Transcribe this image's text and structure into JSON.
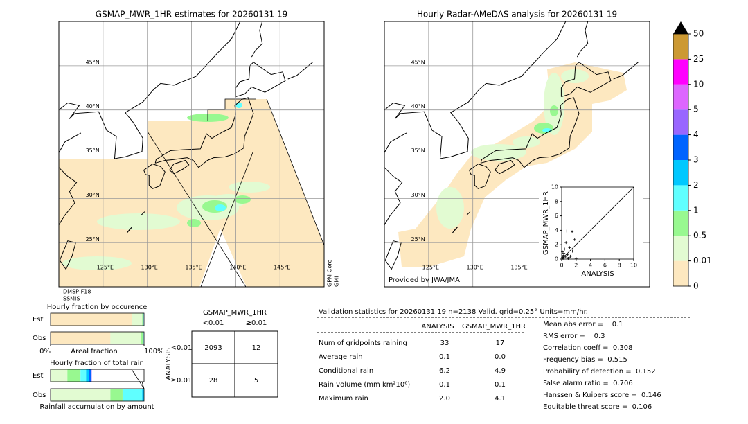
{
  "maps": [
    {
      "title": "GSMAP_MWR_1HR estimates for 20260131 19",
      "notes": [
        "DMSP-F18",
        "SSMIS"
      ],
      "side_notes": [
        "GPM-Core",
        "GMI"
      ],
      "lonticks": [
        {
          "value": 125,
          "label": "125°E"
        },
        {
          "value": 130,
          "label": "130°E"
        },
        {
          "value": 135,
          "label": "135°E"
        },
        {
          "value": 140,
          "label": "140°E"
        },
        {
          "value": 145,
          "label": "145°E"
        }
      ],
      "latticks": [
        {
          "value": 45,
          "label": "45°N"
        },
        {
          "value": 40,
          "label": "40°N"
        },
        {
          "value": 35,
          "label": "35°N"
        },
        {
          "value": 30,
          "label": "30°N"
        },
        {
          "value": 25,
          "label": "25°N"
        }
      ]
    },
    {
      "title": "Hourly Radar-AMeDAS analysis for 20260131 19",
      "credit": "Provided by JWA/JMA",
      "lonticks": [
        {
          "value": 125,
          "label": "125°E"
        },
        {
          "value": 130,
          "label": "130°E"
        },
        {
          "value": 135,
          "label": "135°E"
        }
      ],
      "latticks": [
        {
          "value": 45,
          "label": "45°N"
        },
        {
          "value": 40,
          "label": "40°N"
        },
        {
          "value": 35,
          "label": "35°N"
        },
        {
          "value": 30,
          "label": "30°N"
        },
        {
          "value": 25,
          "label": "25°N"
        }
      ]
    }
  ],
  "chart_data": [
    {
      "type": "colorbar",
      "ticks": [
        0,
        0.01,
        0.5,
        1,
        2,
        3,
        4,
        5,
        10,
        25,
        50
      ],
      "colors": [
        "#fde8c0",
        "#e2fbd2",
        "#98f890",
        "#60ffff",
        "#00c8ff",
        "#0064ff",
        "#9966ff",
        "#dd66ff",
        "#ff00ff",
        "#cc9933"
      ],
      "over_color": "#000000"
    },
    {
      "type": "scatter",
      "xlabel": "ANALYSIS",
      "ylabel": "GSMAP_MWR_1HR",
      "xlim": [
        0,
        10
      ],
      "ylim": [
        0,
        10
      ],
      "xticks": [
        0,
        2,
        4,
        6,
        8,
        10
      ],
      "yticks": [
        0,
        2,
        4,
        6,
        8,
        10
      ],
      "color": "#000000",
      "x": [
        0,
        0.1,
        0.2,
        0.3,
        0.5,
        0.1,
        0.4,
        0.8,
        1.0,
        1.2,
        0.6,
        1.1,
        1.5,
        1.45,
        0.7,
        1.8,
        0.3,
        0.9,
        0.2,
        2.0
      ],
      "values": [
        0,
        0.2,
        0.1,
        0.5,
        0.3,
        1.0,
        1.4,
        0.6,
        0.2,
        0.4,
        2.3,
        1.6,
        1.1,
        3.8,
        3.9,
        2.7,
        0.8,
        0.1,
        0.4,
        0.1
      ]
    },
    {
      "type": "stacked-bar",
      "title": "Hourly fraction by occurence",
      "xlabel": "Areal fraction",
      "categories": [
        "Est",
        "Obs"
      ],
      "xlim": [
        0,
        1
      ],
      "xticks": [
        {
          "value": 0,
          "label": "0%"
        },
        {
          "value": 1,
          "label": "100%"
        }
      ],
      "series": [
        {
          "color": "#fde8c0",
          "values": [
            0.87,
            0.64
          ]
        },
        {
          "color": "#e2fbd2",
          "values": [
            0.11,
            0.33
          ]
        },
        {
          "color": "#98f890",
          "values": [
            0.01,
            0.02
          ]
        },
        {
          "color": "#60ffff",
          "values": [
            0.005,
            0.005
          ]
        }
      ]
    },
    {
      "type": "stacked-bar",
      "title": "Hourly fraction of total rain",
      "xlabel": "Rainfall accumulation by amount",
      "categories": [
        "Est",
        "Obs"
      ],
      "xlim": [
        0,
        1
      ],
      "series": [
        {
          "color": "#e2fbd2",
          "values": [
            0.18,
            0.64
          ]
        },
        {
          "color": "#98f890",
          "values": [
            0.14,
            0.13
          ]
        },
        {
          "color": "#60ffff",
          "values": [
            0.06,
            0.21
          ]
        },
        {
          "color": "#00c8ff",
          "values": [
            0.03,
            0.02
          ]
        },
        {
          "color": "#0064ff",
          "values": [
            0.02,
            0
          ]
        },
        {
          "color": "#9966ff",
          "values": [
            0.01,
            0
          ]
        }
      ]
    }
  ],
  "contingency": {
    "title": "GSMAP_MWR_1HR",
    "columns": [
      "<0.01",
      "≥0.01"
    ],
    "row_title": "ANALYSIS",
    "rows": [
      "<0.01",
      "≥0.01"
    ],
    "cells": [
      [
        2093,
        12
      ],
      [
        28,
        5
      ]
    ]
  },
  "statistics": {
    "title": "Validation statistics for 20260131 19  n=2138 Valid. grid=0.25° Units=mm/hr.",
    "columns": [
      "ANALYSIS",
      "GSMAP_MWR_1HR"
    ],
    "rows": [
      {
        "label": "Num of gridpoints raining",
        "values": [
          "33",
          "17"
        ]
      },
      {
        "label": "Average rain",
        "values": [
          "0.1",
          "0.0"
        ]
      },
      {
        "label": "Conditional rain",
        "values": [
          "6.2",
          "4.9"
        ]
      },
      {
        "label": "Rain volume (mm km²10⁶)",
        "values": [
          "0.1",
          "0.1"
        ]
      },
      {
        "label": "Maximum rain",
        "values": [
          "2.0",
          "4.1"
        ]
      }
    ],
    "scores": [
      "Mean abs error =    0.1",
      "RMS error =    0.3",
      "Correlation coeff =  0.308",
      "Frequency bias =  0.515",
      "Probability of detection =  0.152",
      "False alarm ratio =  0.706",
      "Hanssen & Kuipers score =  0.146",
      "Equitable threat score =  0.106"
    ]
  }
}
